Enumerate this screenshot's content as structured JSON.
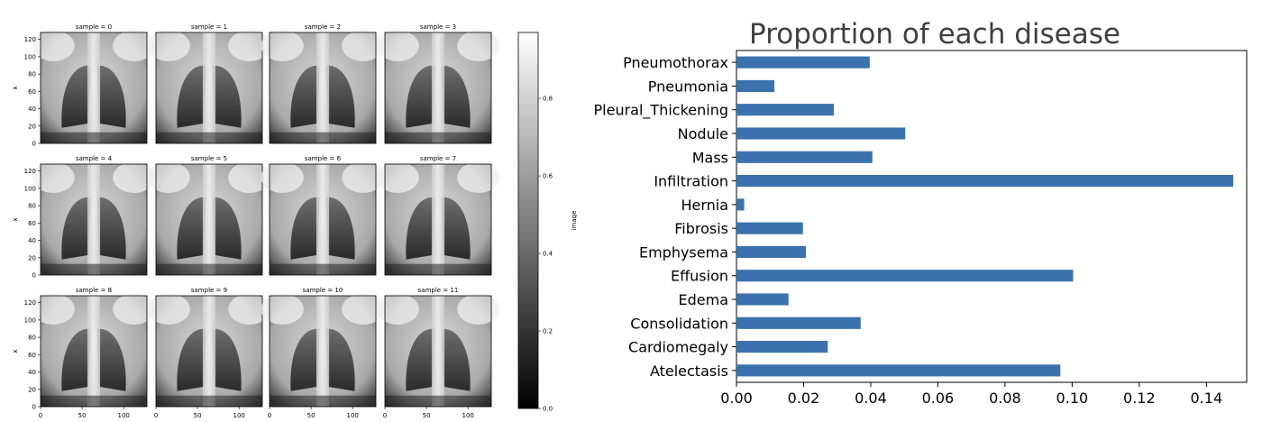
{
  "chart_data": [
    {
      "type": "image-grid",
      "panel_titles": [
        "sample = 0",
        "sample = 1",
        "sample = 2",
        "sample = 3",
        "sample = 4",
        "sample = 5",
        "sample = 6",
        "sample = 7",
        "sample = 8",
        "sample = 9",
        "sample = 10",
        "sample = 11"
      ],
      "rows": 3,
      "cols": 4,
      "ylabel": "x",
      "y_ticks": [
        0,
        20,
        40,
        60,
        80,
        100,
        120
      ],
      "x_ticks": [
        0,
        50,
        100
      ],
      "xlim": [
        0,
        128
      ],
      "ylim": [
        0,
        128
      ],
      "colorbar": {
        "label": "image",
        "ticks": [
          0.0,
          0.2,
          0.4,
          0.6,
          0.8
        ],
        "tick_labels": [
          "0.0",
          "0.2",
          "0.4",
          "0.6",
          "0.8"
        ],
        "range": [
          0.0,
          0.97
        ],
        "colormap": "gray"
      }
    },
    {
      "type": "bar",
      "orientation": "horizontal",
      "title": "Proportion of each disease",
      "categories": [
        "Atelectasis",
        "Cardiomegaly",
        "Consolidation",
        "Edema",
        "Effusion",
        "Emphysema",
        "Fibrosis",
        "Hernia",
        "Infiltration",
        "Mass",
        "Nodule",
        "Pleural_Thickening",
        "Pneumonia",
        "Pneumothorax"
      ],
      "values": [
        0.0965,
        0.0272,
        0.037,
        0.0155,
        0.1003,
        0.0207,
        0.0198,
        0.0023,
        0.148,
        0.0405,
        0.0503,
        0.029,
        0.0113,
        0.0397
      ],
      "xlim": [
        0,
        0.152
      ],
      "x_ticks": [
        0.0,
        0.02,
        0.04,
        0.06,
        0.08,
        0.1,
        0.12,
        0.14
      ],
      "x_tick_labels": [
        "0.00",
        "0.02",
        "0.04",
        "0.06",
        "0.08",
        "0.10",
        "0.12",
        "0.14"
      ],
      "xlabel": "",
      "ylabel": "",
      "bar_color": "#3b72ae",
      "grid": false
    }
  ]
}
